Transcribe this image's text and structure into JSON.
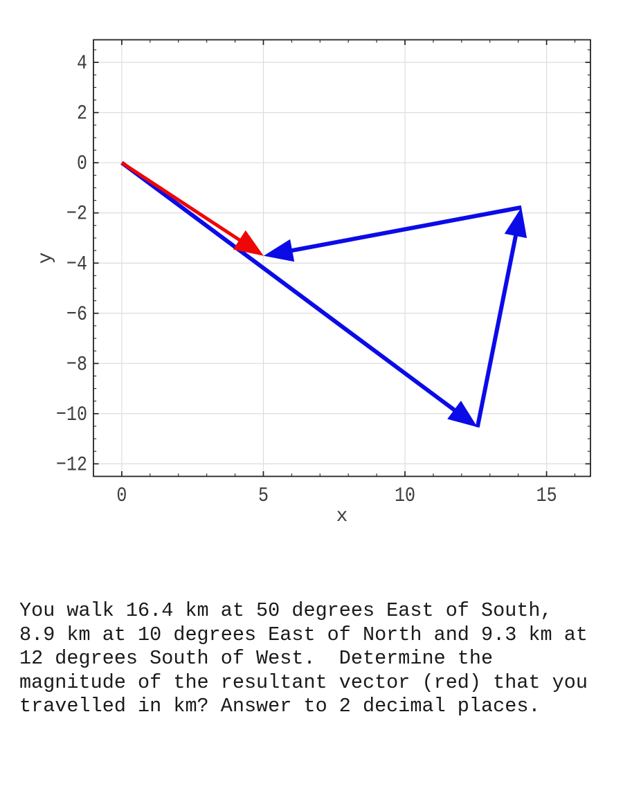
{
  "colors": {
    "background": "#ffffff",
    "vector_blue": "#0b0be8",
    "vector_red": "#ef0606",
    "grid": "#dcdcdc",
    "spine": "#222222",
    "tick": "#222222",
    "tick_label": "#3d3d3d",
    "axis_label": "#3d3d3d",
    "text": "#1a1a1a"
  },
  "chart_data": {
    "type": "line",
    "subtype": "quiver-vector-diagram",
    "title": "",
    "xlabel": "x",
    "ylabel": "y",
    "xlim": [
      -1.0,
      16.55
    ],
    "ylim": [
      -12.5,
      4.9
    ],
    "xticks": [
      0,
      5,
      10,
      15
    ],
    "yticks": [
      4,
      2,
      0,
      -2,
      -4,
      -6,
      -8,
      -10,
      -12
    ],
    "x_minor_step": 1,
    "y_minor_step": 0.5,
    "grid": true,
    "vectors": [
      {
        "name": "leg-1",
        "color": "#0b0be8",
        "from": [
          0,
          0
        ],
        "to": [
          12.56,
          -10.54
        ]
      },
      {
        "name": "leg-2",
        "color": "#0b0be8",
        "from": [
          12.56,
          -10.54
        ],
        "to": [
          14.11,
          -1.78
        ]
      },
      {
        "name": "leg-3",
        "color": "#0b0be8",
        "from": [
          14.11,
          -1.78
        ],
        "to": [
          5.01,
          -3.71
        ]
      },
      {
        "name": "resultant",
        "color": "#ef0606",
        "from": [
          0,
          0
        ],
        "to": [
          5.01,
          -3.71
        ]
      }
    ]
  },
  "problem": {
    "lines": [
      "You walk 16.4 km at 50 degrees East of South,",
      "8.9 km at 10 degrees East of North and 9.3 km at",
      "12 degrees South of West.  Determine the",
      "magnitude of the resultant vector (red) that you",
      "travelled in km? Answer to 2 decimal places."
    ]
  }
}
